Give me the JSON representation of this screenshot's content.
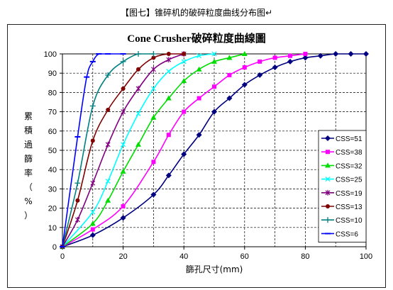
{
  "caption": "【图七】锥碎机的破碎粒度曲线分布图↵",
  "chart_data": {
    "type": "line",
    "title": "Cone Crusher破碎粒度曲線圖",
    "xlabel": "篩孔尺寸(mm)",
    "ylabel": "累積過篩率（%）",
    "xlim": [
      0,
      100
    ],
    "ylim": [
      0,
      100
    ],
    "x_ticks": [
      0,
      20,
      40,
      60,
      80,
      100
    ],
    "y_ticks": [
      0,
      10,
      20,
      30,
      40,
      50,
      60,
      70,
      80,
      90,
      100
    ],
    "grid": true,
    "legend_position": "right",
    "series": [
      {
        "name": "CSS=51",
        "color": "#000080",
        "marker": "diamond",
        "x": [
          0,
          10,
          20,
          30,
          35,
          40,
          45,
          50,
          55,
          60,
          65,
          70,
          75,
          80,
          85,
          90,
          95,
          100
        ],
        "y": [
          0,
          6,
          15,
          27,
          37,
          48,
          58,
          70,
          77,
          84,
          89,
          93,
          96,
          98,
          99,
          100,
          100,
          100
        ]
      },
      {
        "name": "CSS=38",
        "color": "#FF00FF",
        "marker": "square",
        "x": [
          0,
          10,
          20,
          30,
          35,
          40,
          45,
          50,
          55,
          60,
          65,
          70,
          75,
          80
        ],
        "y": [
          0,
          9,
          21,
          44,
          58,
          70,
          77,
          83,
          89,
          93,
          96,
          98,
          99,
          100
        ]
      },
      {
        "name": "CSS=32",
        "color": "#00DD00",
        "marker": "triangle",
        "x": [
          0,
          10,
          15,
          20,
          25,
          30,
          35,
          40,
          45,
          50,
          55,
          60
        ],
        "y": [
          0,
          12,
          24,
          39,
          53,
          67,
          77,
          86,
          92,
          96,
          98,
          100
        ]
      },
      {
        "name": "CSS=25",
        "color": "#00FFFF",
        "marker": "x",
        "x": [
          0,
          10,
          15,
          20,
          25,
          30,
          35,
          40,
          45,
          50
        ],
        "y": [
          0,
          18,
          34,
          53,
          69,
          82,
          91,
          96,
          99,
          100
        ]
      },
      {
        "name": "CSS=19",
        "color": "#800080",
        "marker": "star",
        "x": [
          0,
          5,
          10,
          15,
          20,
          25,
          30,
          35,
          40
        ],
        "y": [
          0,
          14,
          33,
          53,
          70,
          82,
          92,
          97,
          100
        ]
      },
      {
        "name": "CSS=13",
        "color": "#800000",
        "marker": "circle",
        "x": [
          0,
          5,
          10,
          15,
          20,
          25,
          30,
          35,
          40
        ],
        "y": [
          0,
          24,
          55,
          71,
          82,
          92,
          98,
          100,
          100
        ]
      },
      {
        "name": "CSS=10",
        "color": "#008080",
        "marker": "plus",
        "x": [
          0,
          5,
          10,
          15,
          20,
          25,
          30
        ],
        "y": [
          0,
          33,
          73,
          89,
          96,
          100,
          100
        ]
      },
      {
        "name": "CSS=6",
        "color": "#0000FF",
        "marker": "dash",
        "x": [
          0,
          5,
          8,
          10,
          12,
          15,
          20
        ],
        "y": [
          0,
          57,
          88,
          96,
          100,
          100,
          100
        ]
      }
    ]
  }
}
